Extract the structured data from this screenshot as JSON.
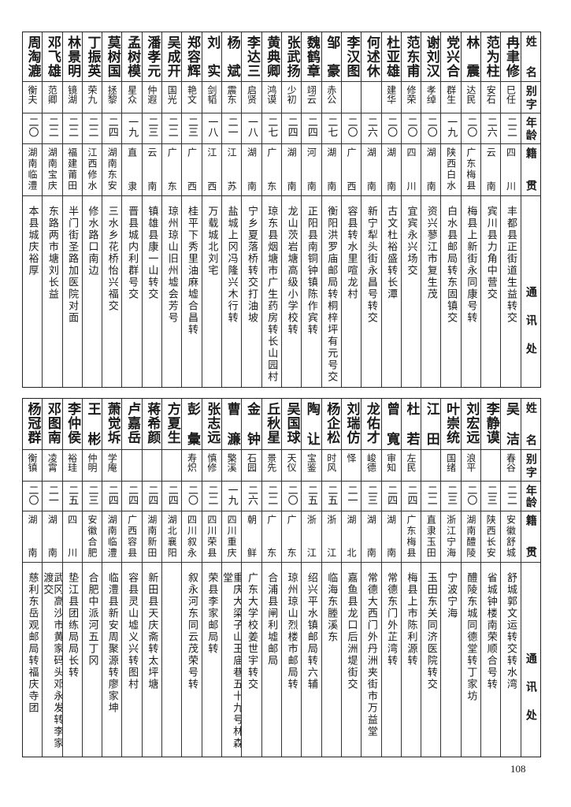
{
  "headers": {
    "name": "姓名",
    "alias": "别字",
    "age": "年龄",
    "native": "籍贯",
    "address": "通讯处"
  },
  "top_rows": [
    {
      "name": "冉聿修",
      "alias": "巳任",
      "age": "二二",
      "native": "四川",
      "address": "丰都县正街道生益转交"
    },
    {
      "name": "范为柱",
      "alias": "安石",
      "age": "二六",
      "native": "云南",
      "address": "宾川县力角中营交"
    },
    {
      "name": "林震",
      "alias": "达民",
      "age": "二〇",
      "native": "广东梅县",
      "address": "梅县上新街永同康号转"
    },
    {
      "name": "党兴合",
      "alias": "群生",
      "age": "一九",
      "native": "陕西白水",
      "address": "白水县邮局转东固镇交"
    },
    {
      "name": "谢刘汉",
      "alias": "孝绰",
      "age": "二〇",
      "native": "湖南",
      "address": "资兴蓼江市复生茂"
    },
    {
      "name": "范东甫",
      "alias": "修荣",
      "age": "二〇",
      "native": "四川",
      "address": "宜宾永兴场交"
    },
    {
      "name": "杜亚雄",
      "alias": "建华",
      "age": "二〇",
      "native": "湖南",
      "address": "古文杜裕盛转长潭"
    },
    {
      "name": "何述休",
      "alias": "",
      "age": "二六",
      "native": "湖南",
      "address": "新宁犁头街永昌号转交"
    },
    {
      "name": "李汉图",
      "alias": "",
      "age": "二〇",
      "native": "广西",
      "address": "容县转水里喧龙村"
    },
    {
      "name": "邹豪",
      "alias": "赤公",
      "age": "二七",
      "native": "湖南",
      "address": "衡阳洪罗庙邮局转桐梓坪有元号交"
    },
    {
      "name": "魏鹤章",
      "alias": "翊云",
      "age": "二四",
      "native": "河南",
      "address": "正阳县南铜钟镇陈作宾转"
    },
    {
      "name": "张武扬",
      "alias": "少初",
      "age": "二四",
      "native": "湖南",
      "address": "龙山茨岩塘高级小学校转"
    },
    {
      "name": "黄典卿",
      "alias": "鸿谟",
      "age": "二七",
      "native": "广东",
      "address": "琼东县烟塘市广生药房转长山园村"
    },
    {
      "name": "李达三",
      "alias": "启贤",
      "age": "一八",
      "native": "湖南",
      "address": "宁乡夏落桥转交打油坡"
    },
    {
      "name": "杨斌",
      "alias": "震东",
      "age": "二一",
      "native": "江苏",
      "address": "盐城上冈冯隆兴木行转"
    },
    {
      "name": "刘实",
      "alias": "剑韬",
      "age": "一八",
      "native": "江西",
      "address": "万载城北刘宅"
    },
    {
      "name": "郑容辉",
      "alias": "艳文",
      "age": "二三",
      "native": "广西",
      "address": "桂平下秀里油麻墟合昌转"
    },
    {
      "name": "吴成开",
      "alias": "国光",
      "age": "二二",
      "native": "广东",
      "address": "琼州琼山旧州墟会芳号"
    },
    {
      "name": "潘孝元",
      "alias": "仲遐",
      "age": "二三",
      "native": "云南",
      "address": "镇雄县康一山转交"
    },
    {
      "name": "孟树模",
      "alias": "星众",
      "age": "一九",
      "native": "直隶",
      "address": "晋县城内利群号交"
    },
    {
      "name": "莫树国",
      "alias": "拯黎",
      "age": "二四",
      "native": "湖南东安",
      "address": "三水乡花桥怡兴福交"
    },
    {
      "name": "丁振英",
      "alias": "荣九",
      "age": "二二",
      "native": "江西修水",
      "address": "修水路口南边"
    },
    {
      "name": "林景明",
      "alias": "镜湖",
      "age": "二二",
      "native": "福建莆田",
      "address": "半门街圣路加医院对面"
    },
    {
      "name": "邓飞雄",
      "alias": "范卿",
      "age": "二二",
      "native": "湖南宝庆",
      "address": "东路两市塘刘长益"
    },
    {
      "name": "周淘漉",
      "alias": "衡夫",
      "age": "二〇",
      "native": "湖南临澧",
      "address": "本县城庆裕厚"
    }
  ],
  "bottom_rows": [
    {
      "name": "吴洁",
      "alias": "春谷",
      "age": "二二",
      "native": "安徽舒城",
      "address": "舒城郭文运转交转水湾"
    },
    {
      "name": "李静谟",
      "alias": "",
      "age": "二三",
      "native": "陕西长安",
      "address": "省城钟楼南荣顺合号转"
    },
    {
      "name": "刘宏远",
      "alias": "浪平",
      "age": "二〇",
      "native": "湖南醴陵",
      "address": "醴陵东城同德堂转丁家坊"
    },
    {
      "name": "叶崇统",
      "alias": "国绪",
      "age": "二三",
      "native": "浙江宁海",
      "address": "宁波宁海"
    },
    {
      "name": "江田",
      "alias": "",
      "age": "二二",
      "native": "直隶玉田",
      "address": "玉田东关同济医院转交"
    },
    {
      "name": "杜若",
      "alias": "左民",
      "age": "二四",
      "native": "广东梅县",
      "address": "梅县上市陈利源转"
    },
    {
      "name": "曾寬",
      "alias": "审知",
      "age": "二四",
      "native": "湖南",
      "address": "常德东门外芷湾转"
    },
    {
      "name": "龙佑才",
      "alias": "峻德",
      "age": "二三",
      "native": "湖南",
      "address": "常德大西门外丹洲夹街市万益堂"
    },
    {
      "name": "刘瑞仿",
      "alias": "怿",
      "age": "二一",
      "native": "湖北",
      "address": "嘉鱼县龙口后洲堤街交"
    },
    {
      "name": "杨企松",
      "alias": "时风",
      "age": "二五",
      "native": "浙江",
      "address": "临海东塍溪东"
    },
    {
      "name": "陶让",
      "alias": "宝鉴",
      "age": "二五",
      "native": "浙江",
      "address": "绍兴平水镇邮局转六辅"
    },
    {
      "name": "吴国球",
      "alias": "天仪",
      "age": "二〇",
      "native": "广东",
      "address": "琼州琼山烈楼市邮局转"
    },
    {
      "name": "丘秋星",
      "alias": "景先",
      "age": "二二",
      "native": "广东",
      "address": "合浦县闸利墟邮局"
    },
    {
      "name": "金钟",
      "alias": "石园",
      "age": "二六",
      "native": "朝鲜",
      "address": "广东大学校姜世宇转交"
    },
    {
      "name": "曹濂",
      "alias": "檠溪",
      "age": "一九",
      "native": "四川重庆",
      "address": "重庆大梁子山王庙巷五十九号林森堂"
    },
    {
      "name": "张志远",
      "alias": "慎修",
      "age": "二二",
      "native": "四川荣县",
      "address": "荣县李家邮局转"
    },
    {
      "name": "彭彙",
      "alias": "寿炽",
      "age": "二〇",
      "native": "四川叙永",
      "address": "叙永河东同云茂荣号转"
    },
    {
      "name": "方夏生",
      "alias": "",
      "age": "二四",
      "native": "湖北襄阳",
      "address": ""
    },
    {
      "name": "蒋希颜",
      "alias": "",
      "age": "二四",
      "native": "湖南新田",
      "address": "新田县天庆斋转太坪塘"
    },
    {
      "name": "卢嘉岳",
      "alias": "",
      "age": "二四",
      "native": "广西容县",
      "address": "容县灵山墟义兴转图村"
    },
    {
      "name": "萧觉坼",
      "alias": "学庵",
      "age": "二四",
      "native": "湖南临澧",
      "address": "临澧县新安周聚源转廖家坤"
    },
    {
      "name": "王彬",
      "alias": "仲明",
      "age": "二三",
      "native": "安徽合肥",
      "address": "合肥中派河五丁冈"
    },
    {
      "name": "李仲侯",
      "alias": "裕珪",
      "age": "二五",
      "native": "四川",
      "address": "垫江县团练局局长转"
    },
    {
      "name": "邓图南",
      "alias": "凌霄",
      "age": "二一",
      "native": "湖南",
      "address": "武冈高沙市黄家码头邓永发转李家渡交"
    },
    {
      "name": "杨冠群",
      "alias": "衡镇",
      "age": "二〇",
      "native": "湖南",
      "address": "慈利东岳观邮局转福庆寺团"
    }
  ],
  "page_number": "108"
}
